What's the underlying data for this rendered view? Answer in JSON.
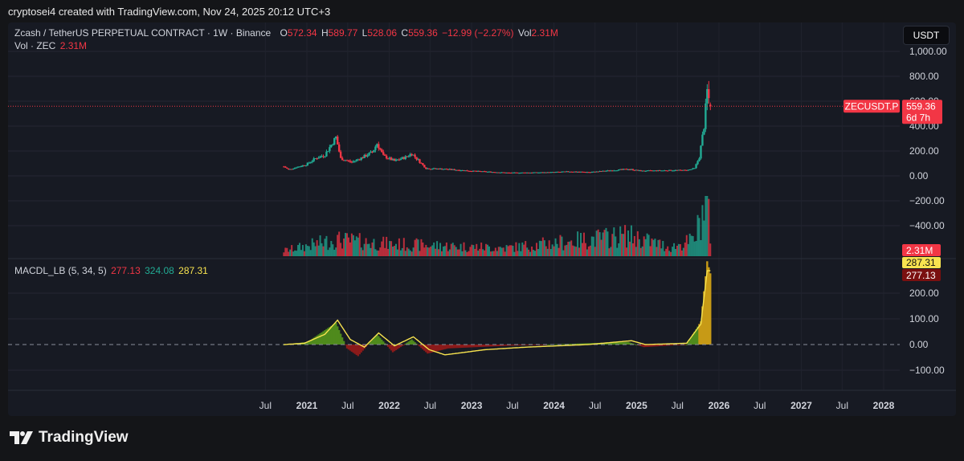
{
  "header": {
    "attribution": "cryptosei4 created with TradingView.com, Nov 24, 2025 20:12 UTC+3"
  },
  "legend": {
    "symbol": "Zcash / TetherUS PERPETUAL CONTRACT · 1W · Binance",
    "o_label": "O",
    "o_value": "572.34",
    "h_label": "H",
    "h_value": "589.77",
    "l_label": "L",
    "l_value": "528.06",
    "c_label": "C",
    "c_value": "559.36",
    "change": "−12.99 (−2.27%)",
    "vol_label": "Vol",
    "vol_value": "2.31M",
    "vol_line_label": "Vol · ZEC",
    "vol_line_value": "2.31M",
    "macd_label": "MACDL_LB (5, 34, 5)",
    "macd_v1": "277.13",
    "macd_v2": "324.08",
    "macd_v3": "287.31"
  },
  "currency_button": "USDT",
  "price_tag": {
    "symbol": "ZECUSDT.P",
    "price": "559.36",
    "countdown": "6d 7h"
  },
  "volume_tag": "2.31M",
  "macd_tags": {
    "signal": "287.31",
    "macd": "277.13"
  },
  "colors": {
    "up": "#22ab94",
    "down": "#f23645",
    "background": "#171a23",
    "macd_line": "#f7e34f",
    "hist_up": "#4f8a1c",
    "hist_down": "#8b1a1a",
    "hist_current": "#c79a16",
    "macd_tag_bg": "#7a1010"
  },
  "branding": {
    "logo_icon": "tradingview-logo-icon",
    "name": "TradingView"
  },
  "chart_data": [
    {
      "type": "candlestick",
      "title": "Zcash / TetherUS PERPETUAL CONTRACT · 1W · Binance",
      "y_axis_ticks": [
        "−400.00",
        "−200.00",
        "0.00",
        "200.00",
        "400.00",
        "600.00",
        "800.00",
        "1,000.00"
      ],
      "y_tick_values": [
        -400,
        -200,
        0,
        200,
        400,
        600,
        800,
        1000
      ],
      "x_axis_labels": [
        "Jul",
        "2021",
        "Jul",
        "2022",
        "Jul",
        "2023",
        "Jul",
        "2024",
        "Jul",
        "2025",
        "Jul",
        "2026",
        "Jul",
        "2027",
        "Jul",
        "2028"
      ],
      "x_axis_dates": [
        "2020-07-01",
        "2021-01-01",
        "2021-07-01",
        "2022-01-01",
        "2022-07-01",
        "2023-01-01",
        "2023-07-01",
        "2024-01-01",
        "2024-07-01",
        "2025-01-01",
        "2025-07-01",
        "2026-01-01",
        "2026-07-01",
        "2027-01-01",
        "2027-07-01",
        "2028-01-01"
      ],
      "price_anchors": [
        [
          "2020-09-21",
          75
        ],
        [
          "2020-10-12",
          50
        ],
        [
          "2020-11-16",
          70
        ],
        [
          "2020-12-28",
          90
        ],
        [
          "2021-02-08",
          140
        ],
        [
          "2021-03-22",
          170
        ],
        [
          "2021-05-10",
          310
        ],
        [
          "2021-05-31",
          140
        ],
        [
          "2021-07-19",
          110
        ],
        [
          "2021-09-06",
          150
        ],
        [
          "2021-10-18",
          190
        ],
        [
          "2021-11-08",
          260
        ],
        [
          "2021-12-06",
          160
        ],
        [
          "2022-01-24",
          120
        ],
        [
          "2022-03-14",
          150
        ],
        [
          "2022-04-11",
          180
        ],
        [
          "2022-06-13",
          60
        ],
        [
          "2022-09-05",
          55
        ],
        [
          "2022-12-26",
          40
        ],
        [
          "2023-06-12",
          25
        ],
        [
          "2023-12-04",
          28
        ],
        [
          "2024-03-11",
          35
        ],
        [
          "2024-06-10",
          30
        ],
        [
          "2024-11-25",
          55
        ],
        [
          "2025-01-20",
          40
        ],
        [
          "2025-06-16",
          45
        ],
        [
          "2025-08-11",
          45
        ],
        [
          "2025-09-15",
          60
        ],
        [
          "2025-10-06",
          150
        ],
        [
          "2025-10-27",
          400
        ],
        [
          "2025-11-10",
          680
        ],
        [
          "2025-11-24",
          559.36
        ]
      ],
      "last_candle": {
        "open": 572.34,
        "high": 589.77,
        "low": 528.06,
        "close": 559.36
      },
      "current_price": 559.36
    },
    {
      "type": "bar",
      "title": "Vol · ZEC",
      "last_value": "2.31M",
      "volume_anchors": [
        [
          "2020-09-21",
          1
        ],
        [
          "2021-05-10",
          3
        ],
        [
          "2022-01-10",
          2.2
        ],
        [
          "2023-06-01",
          1.5
        ],
        [
          "2024-11-25",
          3.8
        ],
        [
          "2025-06-01",
          1.6
        ],
        [
          "2025-09-15",
          3
        ],
        [
          "2025-10-20",
          8
        ],
        [
          "2025-11-10",
          11
        ],
        [
          "2025-11-24",
          2.31
        ]
      ]
    },
    {
      "type": "line",
      "title": "MACDL_LB (5, 34, 5)",
      "y_axis_ticks": [
        "−100.00",
        "0.00",
        "100.00",
        "200.00"
      ],
      "y_tick_values": [
        -100,
        0,
        100,
        200
      ],
      "series": [
        {
          "name": "MACDL_LB",
          "anchors": [
            [
              "2020-09-21",
              0
            ],
            [
              "2020-12-21",
              5
            ],
            [
              "2021-03-22",
              40
            ],
            [
              "2021-05-17",
              95
            ],
            [
              "2021-07-12",
              20
            ],
            [
              "2021-09-13",
              -10
            ],
            [
              "2021-11-15",
              45
            ],
            [
              "2022-01-24",
              -5
            ],
            [
              "2022-04-18",
              30
            ],
            [
              "2022-06-27",
              -20
            ],
            [
              "2022-09-05",
              -40
            ],
            [
              "2023-03-01",
              -20
            ],
            [
              "2023-09-01",
              -10
            ],
            [
              "2024-06-01",
              0
            ],
            [
              "2024-12-09",
              15
            ],
            [
              "2025-02-10",
              0
            ],
            [
              "2025-08-11",
              5
            ],
            [
              "2025-10-13",
              80
            ],
            [
              "2025-11-10",
              287.31
            ],
            [
              "2025-11-24",
              287.31
            ]
          ]
        }
      ],
      "histogram_anchors": [
        [
          "2020-09-21",
          0
        ],
        [
          "2021-01-04",
          10
        ],
        [
          "2021-05-10",
          85
        ],
        [
          "2021-06-28",
          -15
        ],
        [
          "2021-08-16",
          -45
        ],
        [
          "2021-11-08",
          40
        ],
        [
          "2022-01-17",
          -30
        ],
        [
          "2022-04-11",
          20
        ],
        [
          "2022-06-20",
          -35
        ],
        [
          "2022-09-19",
          -15
        ],
        [
          "2023-06-01",
          -5
        ],
        [
          "2024-11-25",
          10
        ],
        [
          "2025-02-03",
          -10
        ],
        [
          "2025-08-11",
          0
        ],
        [
          "2025-10-13",
          90
        ],
        [
          "2025-11-10",
          324.08
        ],
        [
          "2025-11-24",
          277.13
        ]
      ],
      "legend_values": [
        277.13,
        324.08,
        287.31
      ]
    }
  ]
}
